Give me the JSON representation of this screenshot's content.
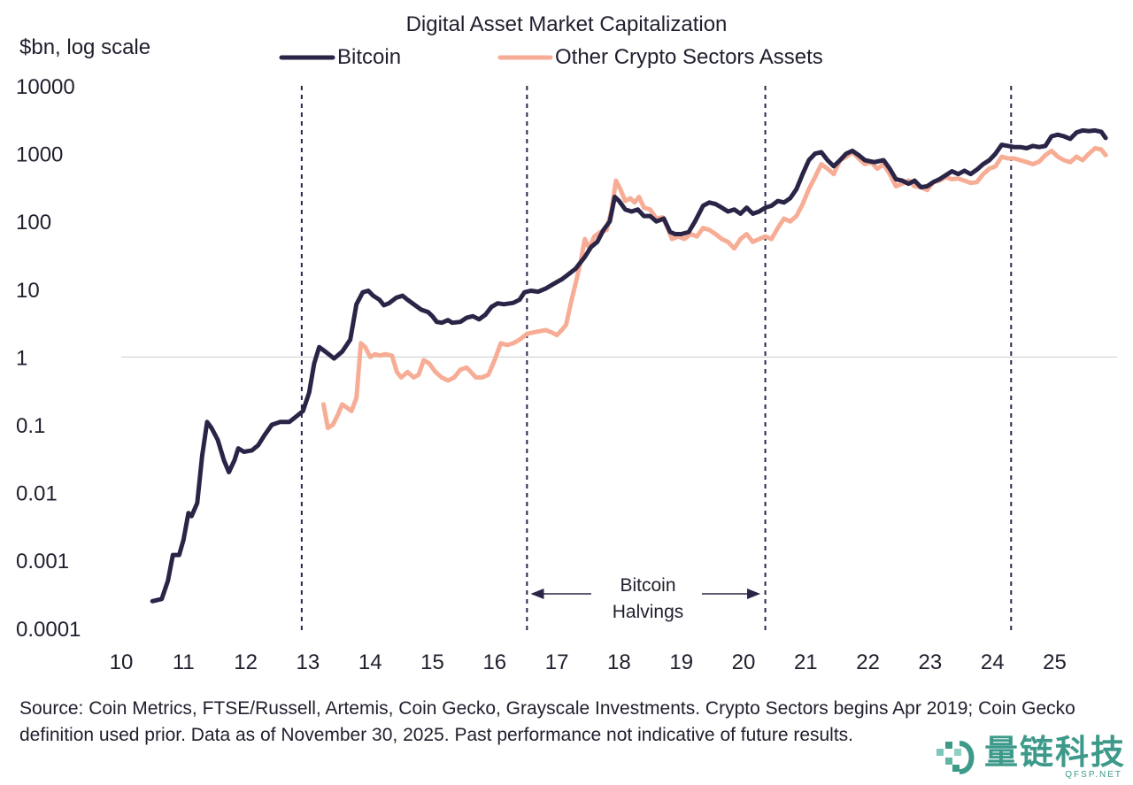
{
  "chart_data": {
    "type": "line",
    "title": "Digital Asset Market Capitalization",
    "ylabel": "$bn, log scale",
    "yscale": "log",
    "ylim": [
      0.0001,
      10000
    ],
    "xlim": [
      10,
      25.9
    ],
    "yticks": [
      "10000",
      "1000",
      "100",
      "10",
      "1",
      "0.1",
      "0.01",
      "0.001",
      "0.0001"
    ],
    "ytick_values": [
      10000,
      1000,
      100,
      10,
      1,
      0.1,
      0.01,
      0.001,
      0.0001
    ],
    "xticks": [
      "10",
      "11",
      "12",
      "13",
      "14",
      "15",
      "16",
      "17",
      "18",
      "19",
      "20",
      "21",
      "22",
      "23",
      "24",
      "25"
    ],
    "xtick_values": [
      10,
      11,
      12,
      13,
      14,
      15,
      16,
      17,
      18,
      19,
      20,
      21,
      22,
      23,
      24,
      25
    ],
    "reference_line_y": 1,
    "legend": "top-center",
    "halvings_x": [
      12.9,
      16.52,
      20.35,
      24.3
    ],
    "annotation": {
      "text_line1": "Bitcoin",
      "text_line2": "Halvings",
      "from_x": 16.6,
      "to_x": 20.25
    },
    "series": [
      {
        "name": "Bitcoin",
        "color": "#2a2547",
        "points": [
          [
            10.5,
            0.00025
          ],
          [
            10.65,
            0.00027
          ],
          [
            10.75,
            0.0005
          ],
          [
            10.83,
            0.0012
          ],
          [
            10.93,
            0.0012
          ],
          [
            11.0,
            0.002
          ],
          [
            11.08,
            0.005
          ],
          [
            11.13,
            0.0045
          ],
          [
            11.22,
            0.007
          ],
          [
            11.3,
            0.035
          ],
          [
            11.38,
            0.11
          ],
          [
            11.45,
            0.09
          ],
          [
            11.55,
            0.06
          ],
          [
            11.65,
            0.03
          ],
          [
            11.73,
            0.02
          ],
          [
            11.82,
            0.03
          ],
          [
            11.88,
            0.045
          ],
          [
            11.97,
            0.04
          ],
          [
            12.1,
            0.042
          ],
          [
            12.2,
            0.05
          ],
          [
            12.3,
            0.07
          ],
          [
            12.42,
            0.1
          ],
          [
            12.55,
            0.11
          ],
          [
            12.7,
            0.11
          ],
          [
            12.8,
            0.13
          ],
          [
            12.92,
            0.16
          ],
          [
            13.02,
            0.3
          ],
          [
            13.1,
            0.8
          ],
          [
            13.18,
            1.4
          ],
          [
            13.28,
            1.2
          ],
          [
            13.42,
            0.95
          ],
          [
            13.55,
            1.2
          ],
          [
            13.68,
            1.8
          ],
          [
            13.78,
            6
          ],
          [
            13.88,
            9
          ],
          [
            13.97,
            9.5
          ],
          [
            14.05,
            8
          ],
          [
            14.15,
            7
          ],
          [
            14.22,
            5.8
          ],
          [
            14.3,
            6.2
          ],
          [
            14.42,
            7.5
          ],
          [
            14.52,
            8
          ],
          [
            14.6,
            7
          ],
          [
            14.7,
            6
          ],
          [
            14.82,
            5
          ],
          [
            14.93,
            4.6
          ],
          [
            15.0,
            4
          ],
          [
            15.07,
            3.3
          ],
          [
            15.15,
            3.2
          ],
          [
            15.25,
            3.5
          ],
          [
            15.32,
            3.2
          ],
          [
            15.45,
            3.3
          ],
          [
            15.55,
            3.8
          ],
          [
            15.65,
            4
          ],
          [
            15.75,
            3.6
          ],
          [
            15.85,
            4.2
          ],
          [
            15.95,
            5.5
          ],
          [
            16.05,
            6.2
          ],
          [
            16.15,
            6
          ],
          [
            16.3,
            6.3
          ],
          [
            16.4,
            7
          ],
          [
            16.48,
            9
          ],
          [
            16.58,
            9.5
          ],
          [
            16.7,
            9.2
          ],
          [
            16.82,
            10.2
          ],
          [
            16.95,
            12
          ],
          [
            17.08,
            14
          ],
          [
            17.2,
            17
          ],
          [
            17.3,
            20
          ],
          [
            17.45,
            30
          ],
          [
            17.55,
            42
          ],
          [
            17.65,
            50
          ],
          [
            17.75,
            75
          ],
          [
            17.85,
            100
          ],
          [
            17.93,
            230
          ],
          [
            18.0,
            200
          ],
          [
            18.1,
            150
          ],
          [
            18.2,
            140
          ],
          [
            18.3,
            150
          ],
          [
            18.4,
            120
          ],
          [
            18.5,
            120
          ],
          [
            18.6,
            100
          ],
          [
            18.72,
            110
          ],
          [
            18.82,
            70
          ],
          [
            18.9,
            65
          ],
          [
            19.0,
            65
          ],
          [
            19.12,
            70
          ],
          [
            19.22,
            100
          ],
          [
            19.35,
            170
          ],
          [
            19.45,
            190
          ],
          [
            19.55,
            180
          ],
          [
            19.65,
            160
          ],
          [
            19.75,
            140
          ],
          [
            19.85,
            150
          ],
          [
            19.95,
            130
          ],
          [
            20.05,
            160
          ],
          [
            20.15,
            130
          ],
          [
            20.25,
            140
          ],
          [
            20.35,
            160
          ],
          [
            20.45,
            170
          ],
          [
            20.55,
            200
          ],
          [
            20.65,
            190
          ],
          [
            20.75,
            220
          ],
          [
            20.85,
            300
          ],
          [
            20.95,
            500
          ],
          [
            21.05,
            800
          ],
          [
            21.15,
            1000
          ],
          [
            21.25,
            1050
          ],
          [
            21.35,
            800
          ],
          [
            21.45,
            650
          ],
          [
            21.55,
            800
          ],
          [
            21.65,
            1000
          ],
          [
            21.75,
            1100
          ],
          [
            21.85,
            950
          ],
          [
            21.95,
            800
          ],
          [
            22.1,
            750
          ],
          [
            22.25,
            800
          ],
          [
            22.35,
            600
          ],
          [
            22.45,
            420
          ],
          [
            22.55,
            400
          ],
          [
            22.65,
            360
          ],
          [
            22.75,
            400
          ],
          [
            22.85,
            320
          ],
          [
            22.95,
            330
          ],
          [
            23.05,
            380
          ],
          [
            23.15,
            420
          ],
          [
            23.25,
            480
          ],
          [
            23.35,
            550
          ],
          [
            23.45,
            500
          ],
          [
            23.55,
            560
          ],
          [
            23.65,
            500
          ],
          [
            23.75,
            580
          ],
          [
            23.85,
            700
          ],
          [
            23.95,
            800
          ],
          [
            24.05,
            1000
          ],
          [
            24.15,
            1350
          ],
          [
            24.25,
            1300
          ],
          [
            24.35,
            1250
          ],
          [
            24.45,
            1250
          ],
          [
            24.55,
            1200
          ],
          [
            24.65,
            1300
          ],
          [
            24.75,
            1250
          ],
          [
            24.85,
            1300
          ],
          [
            24.95,
            1800
          ],
          [
            25.05,
            1900
          ],
          [
            25.15,
            1800
          ],
          [
            25.25,
            1650
          ],
          [
            25.35,
            2050
          ],
          [
            25.45,
            2200
          ],
          [
            25.55,
            2150
          ],
          [
            25.65,
            2200
          ],
          [
            25.75,
            2100
          ],
          [
            25.82,
            1700
          ]
        ]
      },
      {
        "name": "Other Crypto Sectors Assets",
        "color": "#f7ad95",
        "points": [
          [
            13.25,
            0.2
          ],
          [
            13.32,
            0.09
          ],
          [
            13.4,
            0.1
          ],
          [
            13.48,
            0.14
          ],
          [
            13.55,
            0.2
          ],
          [
            13.62,
            0.18
          ],
          [
            13.7,
            0.16
          ],
          [
            13.78,
            0.25
          ],
          [
            13.85,
            1.6
          ],
          [
            13.92,
            1.4
          ],
          [
            14.0,
            1.0
          ],
          [
            14.08,
            1.1
          ],
          [
            14.15,
            1.05
          ],
          [
            14.25,
            1.1
          ],
          [
            14.35,
            1.05
          ],
          [
            14.43,
            0.6
          ],
          [
            14.5,
            0.5
          ],
          [
            14.6,
            0.6
          ],
          [
            14.7,
            0.5
          ],
          [
            14.78,
            0.55
          ],
          [
            14.86,
            0.9
          ],
          [
            14.95,
            0.8
          ],
          [
            15.05,
            0.6
          ],
          [
            15.15,
            0.5
          ],
          [
            15.25,
            0.45
          ],
          [
            15.35,
            0.5
          ],
          [
            15.45,
            0.65
          ],
          [
            15.55,
            0.7
          ],
          [
            15.62,
            0.6
          ],
          [
            15.7,
            0.5
          ],
          [
            15.8,
            0.5
          ],
          [
            15.9,
            0.55
          ],
          [
            16.0,
            0.9
          ],
          [
            16.1,
            1.6
          ],
          [
            16.2,
            1.5
          ],
          [
            16.3,
            1.6
          ],
          [
            16.4,
            1.8
          ],
          [
            16.52,
            2.2
          ],
          [
            16.62,
            2.3
          ],
          [
            16.72,
            2.4
          ],
          [
            16.82,
            2.5
          ],
          [
            16.92,
            2.3
          ],
          [
            17.0,
            2.1
          ],
          [
            17.08,
            2.5
          ],
          [
            17.15,
            3
          ],
          [
            17.22,
            6
          ],
          [
            17.3,
            12
          ],
          [
            17.38,
            25
          ],
          [
            17.45,
            55
          ],
          [
            17.52,
            40
          ],
          [
            17.6,
            60
          ],
          [
            17.7,
            70
          ],
          [
            17.8,
            75
          ],
          [
            17.88,
            150
          ],
          [
            17.95,
            400
          ],
          [
            18.02,
            300
          ],
          [
            18.1,
            200
          ],
          [
            18.18,
            220
          ],
          [
            18.25,
            190
          ],
          [
            18.32,
            230
          ],
          [
            18.4,
            160
          ],
          [
            18.5,
            150
          ],
          [
            18.6,
            110
          ],
          [
            18.7,
            115
          ],
          [
            18.78,
            80
          ],
          [
            18.85,
            55
          ],
          [
            18.95,
            60
          ],
          [
            19.05,
            55
          ],
          [
            19.15,
            65
          ],
          [
            19.25,
            60
          ],
          [
            19.35,
            80
          ],
          [
            19.45,
            75
          ],
          [
            19.55,
            65
          ],
          [
            19.65,
            55
          ],
          [
            19.75,
            50
          ],
          [
            19.85,
            40
          ],
          [
            19.95,
            55
          ],
          [
            20.05,
            65
          ],
          [
            20.15,
            50
          ],
          [
            20.25,
            55
          ],
          [
            20.35,
            60
          ],
          [
            20.45,
            55
          ],
          [
            20.55,
            80
          ],
          [
            20.65,
            110
          ],
          [
            20.75,
            100
          ],
          [
            20.85,
            120
          ],
          [
            20.95,
            180
          ],
          [
            21.05,
            300
          ],
          [
            21.15,
            450
          ],
          [
            21.25,
            700
          ],
          [
            21.35,
            600
          ],
          [
            21.45,
            500
          ],
          [
            21.55,
            800
          ],
          [
            21.65,
            900
          ],
          [
            21.75,
            1050
          ],
          [
            21.85,
            850
          ],
          [
            21.95,
            700
          ],
          [
            22.05,
            750
          ],
          [
            22.15,
            600
          ],
          [
            22.25,
            700
          ],
          [
            22.35,
            500
          ],
          [
            22.45,
            330
          ],
          [
            22.55,
            360
          ],
          [
            22.65,
            400
          ],
          [
            22.75,
            330
          ],
          [
            22.85,
            320
          ],
          [
            22.95,
            290
          ],
          [
            23.05,
            380
          ],
          [
            23.15,
            400
          ],
          [
            23.25,
            450
          ],
          [
            23.35,
            420
          ],
          [
            23.45,
            430
          ],
          [
            23.55,
            400
          ],
          [
            23.65,
            370
          ],
          [
            23.75,
            380
          ],
          [
            23.85,
            500
          ],
          [
            23.95,
            600
          ],
          [
            24.05,
            650
          ],
          [
            24.15,
            900
          ],
          [
            24.25,
            850
          ],
          [
            24.35,
            850
          ],
          [
            24.45,
            800
          ],
          [
            24.55,
            750
          ],
          [
            24.65,
            700
          ],
          [
            24.75,
            760
          ],
          [
            24.85,
            950
          ],
          [
            24.95,
            1100
          ],
          [
            25.05,
            900
          ],
          [
            25.15,
            800
          ],
          [
            25.25,
            750
          ],
          [
            25.35,
            900
          ],
          [
            25.45,
            800
          ],
          [
            25.55,
            1000
          ],
          [
            25.65,
            1200
          ],
          [
            25.75,
            1150
          ],
          [
            25.82,
            950
          ]
        ]
      }
    ]
  },
  "footer": {
    "source_text": "Source: Coin Metrics, FTSE/Russell, Artemis, Coin Gecko, Grayscale Investments. Crypto Sectors begins Apr 2019; Coin Gecko definition used prior. Data as of November 30, 2025. Past performance not indicative of future results."
  },
  "watermark": {
    "main": "量链科技",
    "sub": "QFSP.NET"
  }
}
